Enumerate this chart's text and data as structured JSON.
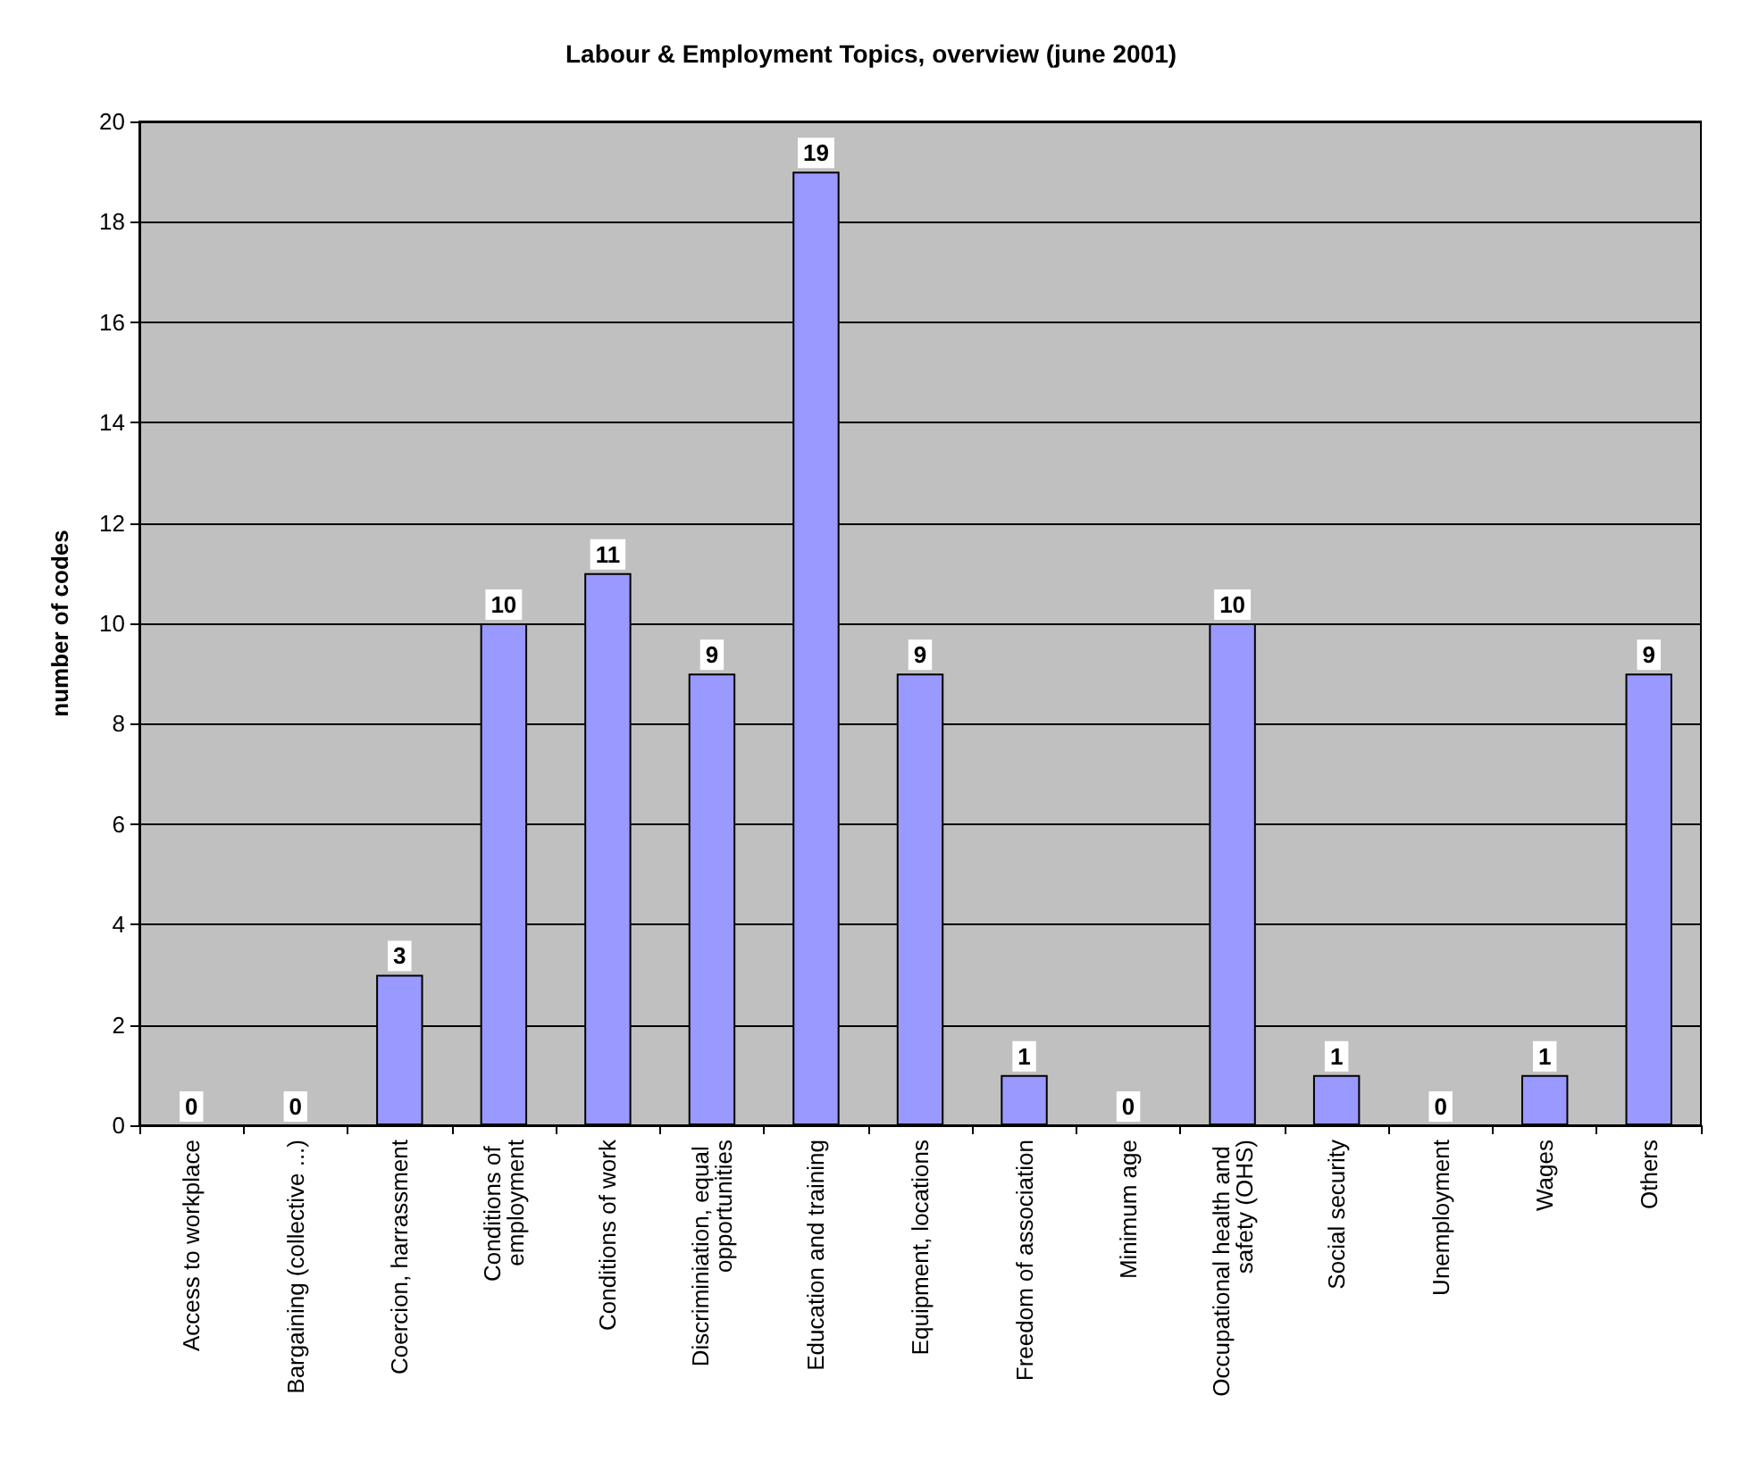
{
  "chart_data": {
    "type": "bar",
    "title": "Labour & Employment Topics, overview (june 2001)",
    "ylabel": "number of codes",
    "categories": [
      "Access to workplace",
      "Bargaining (collective ...)",
      "Coercion, harrassment",
      "Conditions of employment",
      "Conditions of work",
      "Discriminiation, equal opportunities",
      "Education and training",
      "Equipment, locations",
      "Freedom of association",
      "Minimum age",
      "Occupational health and safety (OHS)",
      "Social security",
      "Unemployment",
      "Wages",
      "Others"
    ],
    "values": [
      0,
      0,
      3,
      10,
      11,
      9,
      19,
      9,
      1,
      0,
      10,
      1,
      0,
      1,
      9
    ],
    "color": "#9999ff",
    "ylim": [
      0,
      20
    ],
    "yticks": [
      0,
      2,
      4,
      6,
      8,
      10,
      12,
      14,
      16,
      18,
      20
    ],
    "grid": "y",
    "data_labels": true
  }
}
